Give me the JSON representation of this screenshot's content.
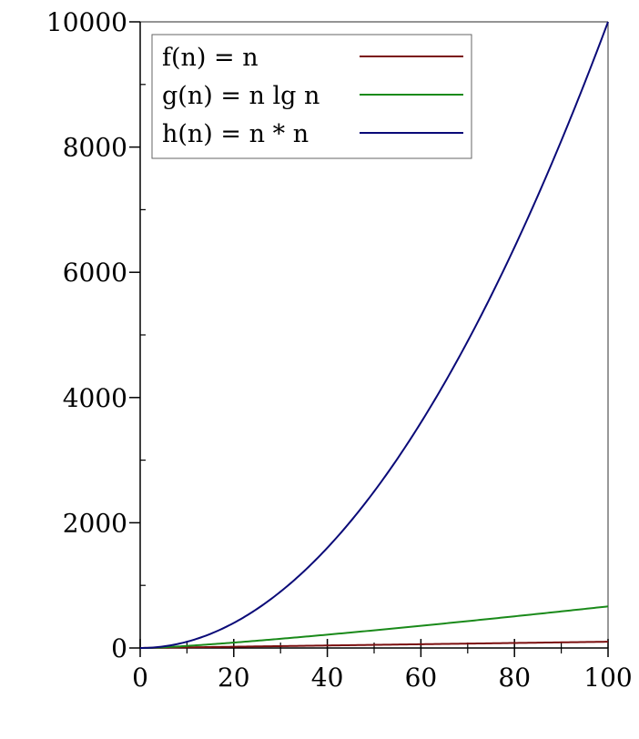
{
  "chart_data": {
    "type": "line",
    "title": "",
    "xlabel": "",
    "ylabel": "",
    "xlim": [
      0,
      100
    ],
    "ylim": [
      0,
      10000
    ],
    "x_ticks": [
      "0",
      "20",
      "40",
      "60",
      "80",
      "100"
    ],
    "y_ticks": [
      "0",
      "2000",
      "4000",
      "6000",
      "8000",
      "10000"
    ],
    "x_tick_values": [
      0,
      20,
      40,
      60,
      80,
      100
    ],
    "y_tick_values": [
      0,
      2000,
      4000,
      6000,
      8000,
      10000
    ],
    "grid": false,
    "legend_position": "top-left",
    "x": [
      0,
      5,
      10,
      15,
      20,
      25,
      30,
      35,
      40,
      45,
      50,
      55,
      60,
      65,
      70,
      75,
      80,
      85,
      90,
      95,
      100
    ],
    "series": [
      {
        "name": "f(n) = n",
        "color": "#7a0f0f",
        "values": [
          0,
          5,
          10,
          15,
          20,
          25,
          30,
          35,
          40,
          45,
          50,
          55,
          60,
          65,
          70,
          75,
          80,
          85,
          90,
          95,
          100
        ]
      },
      {
        "name": "g(n) = n lg n",
        "color": "#1a8a1a",
        "values": [
          0,
          11.6,
          33.2,
          58.6,
          86.4,
          116.1,
          147.2,
          179.5,
          212.9,
          247.1,
          282.2,
          317.9,
          354.4,
          391.4,
          429.1,
          467.2,
          505.8,
          544.8,
          584.3,
          624.1,
          664.4
        ]
      },
      {
        "name": "h(n) = n * n",
        "color": "#0a0a78",
        "values": [
          0,
          25,
          100,
          225,
          400,
          625,
          900,
          1225,
          1600,
          2025,
          2500,
          3025,
          3600,
          4225,
          4900,
          5625,
          6400,
          7225,
          8100,
          9025,
          10000
        ]
      }
    ]
  }
}
